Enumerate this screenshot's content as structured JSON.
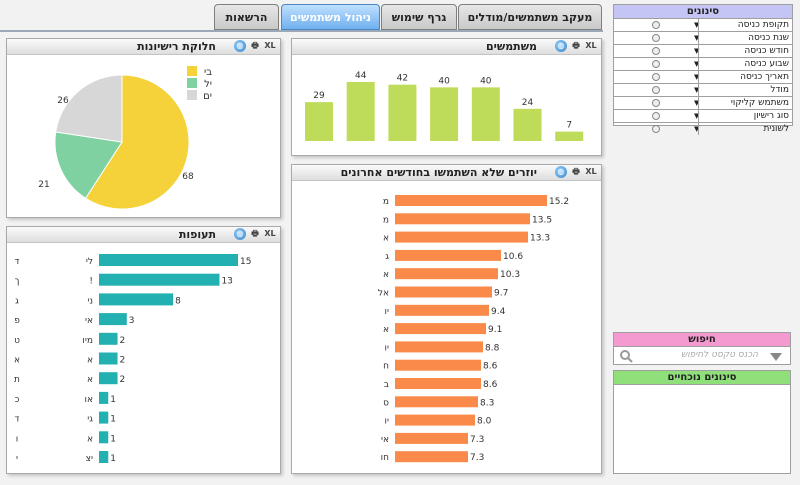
{
  "tabs": [
    {
      "label": "מעקב משתמשים/מודלים",
      "active": false
    },
    {
      "label": "גרף שימוש",
      "active": false
    },
    {
      "label": "ניהול משתמשים",
      "active": true
    },
    {
      "label": "הרשאות",
      "active": false
    }
  ],
  "panel_icons": {
    "xl": "XL",
    "print": "🖶",
    "globe": "◍"
  },
  "colors": {
    "users_bars": "#bfdb5a",
    "inactive_bars": "#fa8a4a",
    "periods_bars": "#23b0b0",
    "pie": [
      "#f5d23a",
      "#7fd1a2",
      "#d7d7d7"
    ],
    "filters_head": "#c5c5f5",
    "search_head": "#f59ad0",
    "current_head": "#8fe07a"
  },
  "panels": {
    "licenses": {
      "title": "חלוקת רישיונות"
    },
    "users": {
      "title": "משתמשים"
    },
    "inactive": {
      "title": "יוזרים שלא השתמשו בחודשים אחרונים"
    },
    "periods": {
      "title": "תעופות"
    }
  },
  "chart_data": [
    {
      "type": "pie",
      "legend": [
        "בי",
        "יל",
        "ים"
      ],
      "legend_placement": "top-right",
      "values": [
        68,
        21,
        26
      ],
      "labels": [
        "68",
        "21",
        "26"
      ]
    },
    {
      "type": "bar",
      "categories": [
        "",
        "",
        "",
        "",
        "",
        "",
        ""
      ],
      "values": [
        29,
        44,
        42,
        40,
        40,
        24,
        7
      ],
      "labels": [
        "29",
        "44",
        "42",
        "40",
        "40",
        "24",
        "7"
      ]
    },
    {
      "type": "bar",
      "orientation": "horizontal",
      "categories": [
        "מ",
        "מ",
        "א",
        "ג",
        "א",
        "אל",
        "יו",
        "א",
        "יו",
        "ח",
        "ב",
        "ס",
        "יו",
        "אי",
        "חו"
      ],
      "values": [
        15.2,
        13.5,
        13.3,
        10.6,
        10.3,
        9.7,
        9.4,
        9.1,
        8.8,
        8.6,
        8.6,
        8.3,
        8.0,
        7.3,
        7.3
      ],
      "labels": [
        "15.2",
        "13.5",
        "13.3",
        "10.6",
        "10.3",
        "9.7",
        "9.4",
        "9.1",
        "8.8",
        "8.6",
        "8.6",
        "8.3",
        "8.0",
        "7.3",
        "7.3"
      ]
    },
    {
      "type": "bar",
      "orientation": "horizontal",
      "categories": [
        "לי",
        "!",
        "ני",
        "אי",
        "מיו",
        "א",
        "א",
        "או",
        "גי",
        "א",
        "יצ"
      ],
      "right_labels": [
        "ד",
        "ך",
        "ג",
        "פ",
        "ט",
        "א",
        "ת",
        "כ",
        "ד",
        "ו",
        "י"
      ],
      "values": [
        15,
        13,
        8,
        3,
        2,
        2,
        2,
        1,
        1,
        1,
        1
      ],
      "labels": [
        "15",
        "13",
        "8",
        "3",
        "2",
        "2",
        "2",
        "1",
        "1",
        "1",
        "1"
      ]
    }
  ],
  "filters": {
    "title": "סינונים",
    "items": [
      "תקופת כניסה",
      "שנת כניסה",
      "חודש כניסה",
      "שבוע כניסה",
      "תאריך כניסה",
      "מודל",
      "משתמש קליקוי",
      "סוג רישיון",
      "לשונית"
    ],
    "drop_glyph": "▼"
  },
  "search": {
    "title": "חיפוש",
    "placeholder": "הכנס טקסט לחיפוש",
    "icon": "search-icon"
  },
  "current": {
    "title": "סינונים נוכחיים"
  }
}
